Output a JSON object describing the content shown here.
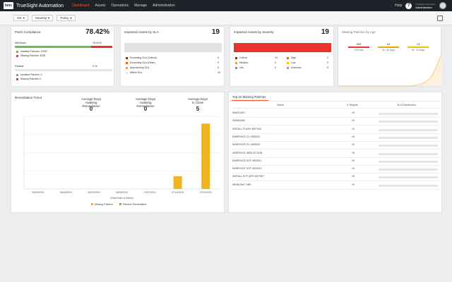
{
  "topbar": {
    "logo": "bmc",
    "product": "TrueSight Automation",
    "nav": [
      "Dashboard",
      "Assets",
      "Operations",
      "Manage",
      "Administration"
    ],
    "active_nav": 0,
    "help_label": "Help",
    "help_icon": "?",
    "user_line1": "TrueSight Automation",
    "user_line2": "Administrator"
  },
  "filters": [
    "OS",
    "Severity",
    "Policy"
  ],
  "patch_compliance": {
    "title": "Patch Compliance",
    "value": "78.42%",
    "windows": {
      "label": "Windows",
      "percent_label": "78.42%",
      "fraction": 0.7842,
      "installed": "Installed Patches: 10367",
      "missing": "Missing Patches: 3028"
    },
    "redhat": {
      "label": "Redhat",
      "percent_label": "0 %",
      "fraction": 0,
      "installed": "Installed Patches: 0",
      "missing": "Missing Patches: 0"
    },
    "colors": {
      "installed": "#6abf45",
      "missing": "#e8342a"
    }
  },
  "impacted_sla": {
    "title": "Impacted Assets by SLA",
    "value": "19",
    "rows": [
      {
        "label": "Exceeding SLA (Critical)",
        "count": "0",
        "color": "#c1121c"
      },
      {
        "label": "Exceeding SLA (Other)",
        "count": "0",
        "color": "#e8621a"
      },
      {
        "label": "Approaching SLA",
        "count": "0",
        "color": "#f2a400"
      },
      {
        "label": "Within SLA",
        "count": "19",
        "color": "#e0e2e5"
      }
    ]
  },
  "impacted_severity": {
    "title": "Impacted Assets by Severity",
    "value": "19",
    "bar_color": "#e8342a",
    "left": [
      {
        "label": "Critical",
        "count": "19",
        "color": "#c1121c"
      },
      {
        "label": "Medium",
        "count": "0",
        "color": "#f2a400"
      },
      {
        "label": "Info",
        "count": "0",
        "color": "#3aa9d6"
      }
    ],
    "right": [
      {
        "label": "High",
        "count": "0",
        "color": "#e8621a"
      },
      {
        "label": "Low",
        "count": "0",
        "color": "#f5c400"
      },
      {
        "label": "Unknown",
        "count": "0",
        "color": "#9b9b9b"
      }
    ]
  },
  "missing_by_age": {
    "title": "Missing Patches by Age",
    "buckets": [
      {
        "value": "959",
        "label": "<30 Days",
        "color": "#e8342a"
      },
      {
        "value": "54",
        "label": "30 - 60 Days",
        "color": "#f2a400"
      },
      {
        "value": "13",
        "label": "60 - 90 Days",
        "color": "#f2c400"
      }
    ],
    "trend_color": "#f7c98a"
  },
  "remediation": {
    "title": "Remediation Trend",
    "stats": [
      {
        "label1": "Average Days",
        "label2": "Awaiting Remediation",
        "value": "0"
      },
      {
        "label1": "Average Days",
        "label2": "Awaiting Remediation",
        "value": "0"
      },
      {
        "label1": "Average Days",
        "label2": "to Close",
        "value": "5"
      }
    ]
  },
  "chart_data": {
    "type": "bar",
    "xlabel": "(Start Date of Week)",
    "categories": [
      "06/09/2019",
      "06/16/2019",
      "06/23/2019",
      "06/30/2019",
      "07/07/2019",
      "07/14/2019",
      "07/21/2019"
    ],
    "series": [
      {
        "name": "Missing Patches",
        "color": "#f0b323",
        "values": [
          0,
          0,
          0,
          0,
          0,
          7,
          36
        ]
      },
      {
        "name": "Patches Remediated",
        "color": "#6abf45",
        "values": [
          0,
          0,
          0,
          0,
          0,
          0,
          0
        ]
      }
    ],
    "ylim": [
      0,
      40
    ],
    "grid": true,
    "legend": "bottom"
  },
  "top_missing": {
    "tab": "Top 10 Missing Patches",
    "headers": [
      "Name",
      "# Targets",
      "SLA Distribution"
    ],
    "rows": [
      {
        "name": "KB4012401",
        "targets": "19"
      },
      {
        "name": "KB4503451",
        "targets": "19"
      },
      {
        "name": "INSTALL FLASH 4507345",
        "targets": "19"
      },
      {
        "name": "INSERVICE CU 4503012",
        "targets": "19"
      },
      {
        "name": "INSERVICE CU 4503012",
        "targets": "19"
      },
      {
        "name": "INSERVICE 4505 GS 3236",
        "targets": "19"
      },
      {
        "name": "INSERVICE SCP 4504212",
        "targets": "19"
      },
      {
        "name": "INSERVICE SCP 4504213",
        "targets": "19"
      },
      {
        "name": "INSTALL SCP QPH 4507567",
        "targets": "19"
      },
      {
        "name": "WINDOWS 7980",
        "targets": "19"
      }
    ]
  }
}
